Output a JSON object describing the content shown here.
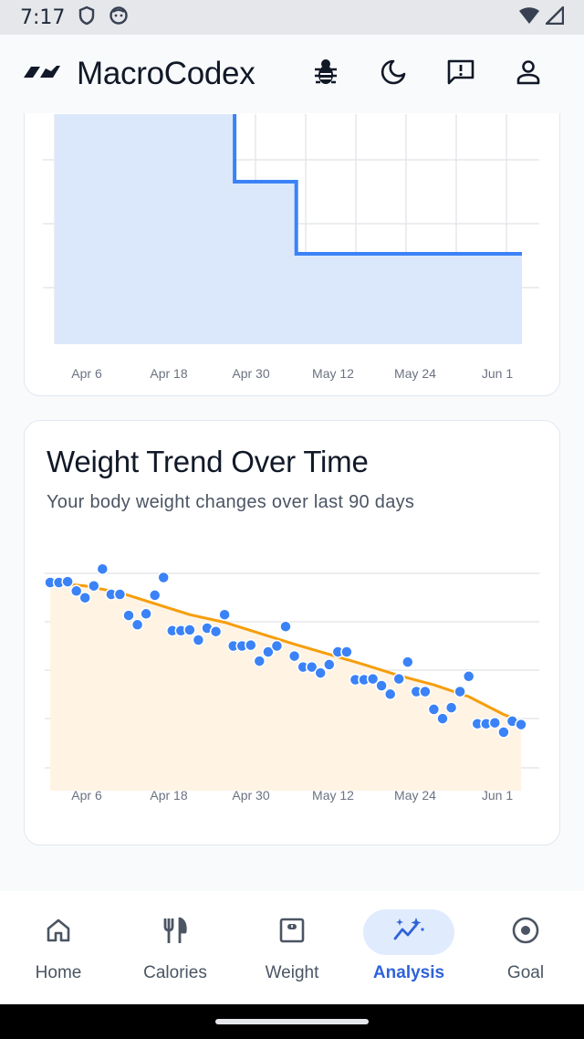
{
  "status_bar": {
    "time": "7:17"
  },
  "header": {
    "app_title": "MacroCodex"
  },
  "x_tick_labels": [
    "Apr 6",
    "Apr 18",
    "Apr 30",
    "May 12",
    "May 24",
    "Jun 1"
  ],
  "charts": [
    {
      "name": "step-chart",
      "chart_data": {
        "type": "area",
        "title": "",
        "categories": [
          "Apr 6",
          "Apr 18",
          "Apr 30",
          "May 12",
          "May 24",
          "Jun 1"
        ],
        "series": [
          {
            "values": [
              [
                0,
                160
              ],
              [
                0.385,
                160
              ],
              [
                0.385,
                78
              ],
              [
                0.517,
                78
              ],
              [
                0.517,
                0
              ],
              [
                1,
                0
              ]
            ]
          }
        ],
        "step_levels_relative": [
          1.0,
          0.49,
          0.0
        ],
        "grid": true,
        "colors": {
          "line": "#3b82f6",
          "fill": "#dbe8fb"
        }
      }
    },
    {
      "name": "weight-trend-chart",
      "chart_data": {
        "type": "scatter",
        "title": "Weight Trend Over Time",
        "subtitle": "Your body weight changes over last 90 days",
        "categories": [
          "Apr 6",
          "Apr 18",
          "Apr 30",
          "May 12",
          "May 24",
          "Jun 1"
        ],
        "series": [
          {
            "type": "scatter",
            "values": [
              [
                0,
                52
              ],
              [
                1,
                52
              ],
              [
                2,
                52.1
              ],
              [
                3,
                51
              ],
              [
                4,
                50.2
              ],
              [
                5,
                51.6
              ],
              [
                6,
                53.6
              ],
              [
                7,
                50.6
              ],
              [
                8,
                50.6
              ],
              [
                9,
                48.1
              ],
              [
                10,
                47
              ],
              [
                11,
                48.3
              ],
              [
                12,
                50.5
              ],
              [
                13,
                52.6
              ],
              [
                14,
                46.3
              ],
              [
                15,
                46.3
              ],
              [
                16,
                46.4
              ],
              [
                17,
                45.2
              ],
              [
                18,
                46.6
              ],
              [
                19,
                46.2
              ],
              [
                20,
                48.2
              ],
              [
                21,
                44.5
              ],
              [
                22,
                44.5
              ],
              [
                23,
                44.6
              ],
              [
                24,
                42.7
              ],
              [
                25,
                43.8
              ],
              [
                26,
                44.5
              ],
              [
                27,
                46.8
              ],
              [
                28,
                43.3
              ],
              [
                29,
                42
              ],
              [
                30,
                42
              ],
              [
                31,
                41.3
              ],
              [
                32,
                42.3
              ],
              [
                33,
                43.8
              ],
              [
                34,
                43.8
              ],
              [
                35,
                40.5
              ],
              [
                36,
                40.5
              ],
              [
                37,
                40.6
              ],
              [
                38,
                39.8
              ],
              [
                39,
                38.8
              ],
              [
                40,
                40.6
              ],
              [
                41,
                42.6
              ],
              [
                42,
                39.1
              ],
              [
                43,
                39.1
              ],
              [
                44,
                37
              ],
              [
                45,
                35.9
              ],
              [
                46,
                37.2
              ],
              [
                47,
                39.1
              ],
              [
                48,
                40.9
              ],
              [
                49,
                35.3
              ],
              [
                50,
                35.3
              ],
              [
                51,
                35.4
              ],
              [
                52,
                34.3
              ],
              [
                53,
                35.6
              ],
              [
                54,
                35.2
              ]
            ]
          },
          {
            "type": "line",
            "values": [
              [
                0,
                52
              ],
              [
                4,
                51.6
              ],
              [
                8,
                50.8
              ],
              [
                12,
                49.5
              ],
              [
                16,
                48.2
              ],
              [
                20,
                47.3
              ],
              [
                24,
                46
              ],
              [
                28,
                44.7
              ],
              [
                32,
                43.5
              ],
              [
                36,
                42.3
              ],
              [
                40,
                41
              ],
              [
                44,
                39.9
              ],
              [
                48,
                38.5
              ],
              [
                52,
                36.4
              ],
              [
                54,
                35.6
              ]
            ]
          }
        ],
        "grid": true,
        "colors": {
          "dots": "#3b82f6",
          "trend_line": "#f59e0b",
          "fill": "#fff3e4"
        }
      }
    }
  ],
  "nav": {
    "items": [
      {
        "label": "Home",
        "icon": "home-icon"
      },
      {
        "label": "Calories",
        "icon": "fork-knife-icon"
      },
      {
        "label": "Weight",
        "icon": "scale-icon"
      },
      {
        "label": "Analysis",
        "icon": "sparkle-chart-icon",
        "active": true
      },
      {
        "label": "Goal",
        "icon": "target-icon"
      }
    ]
  }
}
